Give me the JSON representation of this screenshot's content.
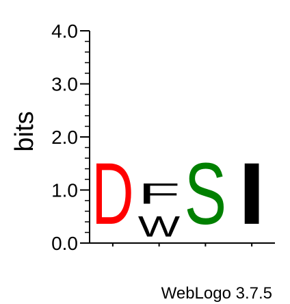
{
  "chart_data": {
    "type": "sequence-logo",
    "ylabel": "bits",
    "xlabel": "",
    "ylim": [
      0,
      4
    ],
    "yticks": [
      {
        "value": 0.0,
        "label": "0.0"
      },
      {
        "value": 1.0,
        "label": "1.0"
      },
      {
        "value": 2.0,
        "label": "2.0"
      },
      {
        "value": 3.0,
        "label": "3.0"
      },
      {
        "value": 4.0,
        "label": "4.0"
      }
    ],
    "positions": [
      {
        "position": 1,
        "stack": [
          {
            "letter": "D",
            "bits": 1.85,
            "color": "#ff0000"
          }
        ]
      },
      {
        "position": 2,
        "stack": [
          {
            "letter": "W",
            "bits": 0.62,
            "color": "#000000"
          },
          {
            "letter": "F",
            "bits": 0.62,
            "color": "#000000"
          }
        ]
      },
      {
        "position": 3,
        "stack": [
          {
            "letter": "S",
            "bits": 1.85,
            "color": "#008000"
          }
        ]
      },
      {
        "position": 4,
        "stack": [
          {
            "letter": "I",
            "bits": 1.85,
            "color": "#000000"
          }
        ]
      }
    ]
  },
  "footer": {
    "credit": "WebLogo 3.7.5"
  }
}
